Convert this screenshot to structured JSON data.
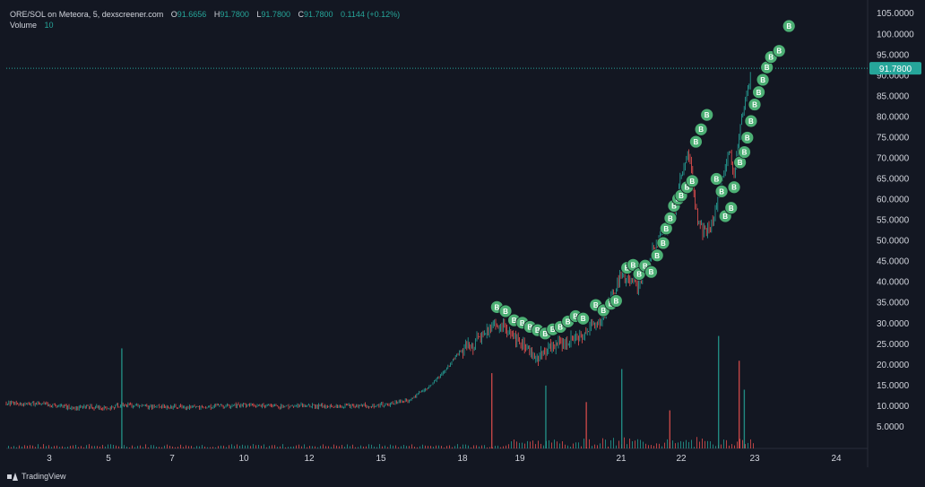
{
  "legend": {
    "pair": "ORE/SOL on Meteora, 5, dexscreener.com",
    "open_label": "O",
    "open": "91.6656",
    "high_label": "H",
    "high": "91.7800",
    "low_label": "L",
    "low": "91.7800",
    "close_label": "C",
    "close": "91.7800",
    "change": "0.1144 (+0.12%)",
    "volume_label": "Volume",
    "volume": "10"
  },
  "price_tag": "91.7800",
  "brand": "TradingView",
  "colors": {
    "up": "#26a69a",
    "down": "#ef5350",
    "marker": "#4caf74",
    "bg": "#131722"
  },
  "chart_data": {
    "type": "candlestick",
    "title": "",
    "ylim": [
      0,
      107
    ],
    "y_ticks": [
      5,
      10,
      15,
      20,
      25,
      30,
      35,
      40,
      45,
      50,
      55,
      60,
      65,
      70,
      75,
      80,
      85,
      90,
      95,
      100,
      105
    ],
    "y_tick_labels": [
      "5.0000",
      "10.0000",
      "15.0000",
      "20.0000",
      "25.0000",
      "30.0000",
      "35.0000",
      "40.0000",
      "45.0000",
      "50.0000",
      "55.0000",
      "60.0000",
      "65.0000",
      "70.0000",
      "75.0000",
      "80.0000",
      "85.0000",
      "90.0000",
      "95.0000",
      "100.0000",
      "105.0000"
    ],
    "x_ticks": [
      3,
      5,
      7,
      10,
      12,
      15,
      18,
      19,
      21,
      22,
      23,
      24
    ],
    "x_tick_labels": [
      "3",
      "5",
      "7",
      "10",
      "12",
      "15",
      "18",
      "19",
      "21",
      "22",
      "23",
      "24"
    ],
    "last_price": 91.78,
    "price_path": [
      [
        1.0,
        10.8
      ],
      [
        2.0,
        10.6
      ],
      [
        3.0,
        10.4
      ],
      [
        3.8,
        9.6
      ],
      [
        4.4,
        9.9
      ],
      [
        5.0,
        9.4
      ],
      [
        5.4,
        10.4
      ],
      [
        6.0,
        10.0
      ],
      [
        7.0,
        9.9
      ],
      [
        8.0,
        9.7
      ],
      [
        9.0,
        9.9
      ],
      [
        10.0,
        10.3
      ],
      [
        11.0,
        10.0
      ],
      [
        12.0,
        10.1
      ],
      [
        13.0,
        10.0
      ],
      [
        14.0,
        10.1
      ],
      [
        15.0,
        10.2
      ],
      [
        16.0,
        11.5
      ],
      [
        16.5,
        13.5
      ],
      [
        17.0,
        16.0
      ],
      [
        17.5,
        20.0
      ],
      [
        18.0,
        24.0
      ],
      [
        18.2,
        25.0
      ],
      [
        18.4,
        28.0
      ],
      [
        18.7,
        30.0
      ],
      [
        19.0,
        25.0
      ],
      [
        19.2,
        23.0
      ],
      [
        19.4,
        22.0
      ],
      [
        19.6,
        24.0
      ],
      [
        19.8,
        25.0
      ],
      [
        20.0,
        26.0
      ],
      [
        20.3,
        28.0
      ],
      [
        20.6,
        31.0
      ],
      [
        20.8,
        36.0
      ],
      [
        21.0,
        42.0
      ],
      [
        21.3,
        39.0
      ],
      [
        21.5,
        47.0
      ],
      [
        21.7,
        52.0
      ],
      [
        21.9,
        58.0
      ],
      [
        22.0,
        66.0
      ],
      [
        22.1,
        72.0
      ],
      [
        22.2,
        57.0
      ],
      [
        22.3,
        52.0
      ],
      [
        22.45,
        55.0
      ],
      [
        22.55,
        65.0
      ],
      [
        22.65,
        72.0
      ],
      [
        22.72,
        66.0
      ],
      [
        22.8,
        78.0
      ],
      [
        22.88,
        84.0
      ],
      [
        22.95,
        91.78
      ]
    ],
    "volume_spikes": [
      [
        5.4,
        24.0
      ],
      [
        18.5,
        18.0
      ],
      [
        19.5,
        15.0
      ],
      [
        20.3,
        11.0
      ],
      [
        21.0,
        19.0
      ],
      [
        21.8,
        9.0
      ],
      [
        22.5,
        27.0
      ],
      [
        22.78,
        21.0
      ],
      [
        22.85,
        14.0
      ]
    ],
    "buy_marker_label": "B",
    "buy_markers": [
      [
        18.6,
        34.0
      ],
      [
        18.75,
        33.0
      ],
      [
        18.9,
        30.8
      ],
      [
        19.05,
        30.2
      ],
      [
        19.2,
        29.2
      ],
      [
        19.35,
        28.4
      ],
      [
        19.5,
        27.6
      ],
      [
        19.65,
        28.6
      ],
      [
        19.8,
        29.2
      ],
      [
        19.95,
        30.5
      ],
      [
        20.1,
        31.8
      ],
      [
        20.25,
        31.2
      ],
      [
        20.5,
        34.5
      ],
      [
        20.65,
        33.2
      ],
      [
        20.8,
        34.8
      ],
      [
        20.9,
        35.5
      ],
      [
        21.1,
        43.5
      ],
      [
        21.2,
        44.2
      ],
      [
        21.3,
        42.0
      ],
      [
        21.4,
        44.0
      ],
      [
        21.5,
        42.5
      ],
      [
        21.6,
        46.5
      ],
      [
        21.7,
        49.5
      ],
      [
        21.75,
        53.0
      ],
      [
        21.82,
        55.5
      ],
      [
        21.88,
        58.5
      ],
      [
        21.95,
        60.2
      ],
      [
        22.0,
        61.0
      ],
      [
        22.08,
        63.0
      ],
      [
        22.15,
        64.5
      ],
      [
        22.2,
        74.0
      ],
      [
        22.27,
        77.0
      ],
      [
        22.35,
        80.5
      ],
      [
        22.48,
        65.0
      ],
      [
        22.55,
        62.0
      ],
      [
        22.6,
        56.0
      ],
      [
        22.68,
        58.0
      ],
      [
        22.72,
        63.0
      ],
      [
        22.8,
        69.0
      ],
      [
        22.86,
        71.5
      ],
      [
        22.9,
        75.0
      ],
      [
        22.95,
        79.0
      ],
      [
        23.0,
        83.0
      ],
      [
        23.05,
        86.0
      ],
      [
        23.1,
        89.0
      ],
      [
        23.15,
        92.0
      ],
      [
        23.2,
        94.5
      ],
      [
        23.3,
        96.0
      ],
      [
        23.42,
        102.0
      ]
    ]
  }
}
